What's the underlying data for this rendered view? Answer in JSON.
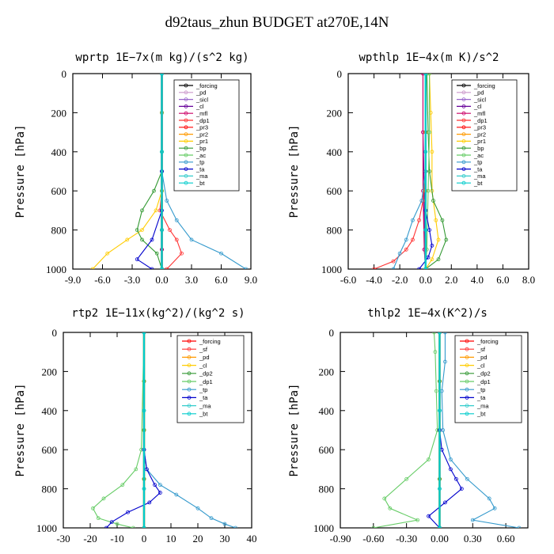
{
  "figure": {
    "title": "d92taus_zhun  BUDGET at270E,14N"
  },
  "chart_data": [
    {
      "type": "line",
      "title": "wprtp  1E−7x(m kg)/(s^2 kg)",
      "ylabel": "Pressure [hPa]",
      "xlim": [
        -9,
        9
      ],
      "ylim": [
        0,
        1000
      ],
      "y_inverted": true,
      "xticks": [
        "-9.0",
        "-6.0",
        "-3.0",
        "0.0",
        "3.0",
        "6.0",
        "9.0"
      ],
      "yticks": [
        "0",
        "200",
        "400",
        "600",
        "800",
        "1000"
      ],
      "legend_position": "top-right",
      "series": [
        {
          "name": "_forcing",
          "color": "#000000",
          "x": [
            0,
            0,
            0,
            0,
            0,
            0,
            0
          ],
          "y": [
            0,
            200,
            400,
            600,
            800,
            900,
            1000
          ]
        },
        {
          "name": "_pd",
          "color": "#cc99cc",
          "x": [
            0,
            0,
            0,
            0,
            0,
            0,
            0
          ],
          "y": [
            0,
            200,
            400,
            600,
            800,
            900,
            1000
          ]
        },
        {
          "name": "_sicl",
          "color": "#9966cc",
          "x": [
            0,
            0,
            0,
            0,
            0,
            0,
            0
          ],
          "y": [
            0,
            200,
            400,
            600,
            800,
            900,
            1000
          ]
        },
        {
          "name": "_cl",
          "color": "#660099",
          "x": [
            0,
            0,
            0,
            0,
            0,
            0,
            0
          ],
          "y": [
            0,
            200,
            400,
            600,
            800,
            900,
            1000
          ]
        },
        {
          "name": "_mfl",
          "color": "#cc0066",
          "x": [
            0,
            0,
            0,
            0,
            0,
            0,
            0
          ],
          "y": [
            0,
            200,
            400,
            600,
            800,
            900,
            1000
          ]
        },
        {
          "name": "_dp1",
          "color": "#ff3333",
          "x": [
            0,
            0,
            0,
            -0.2,
            0.8,
            1.5,
            2.0,
            0.5
          ],
          "y": [
            0,
            400,
            600,
            700,
            800,
            850,
            920,
            1000
          ]
        },
        {
          "name": "_pr3",
          "color": "#ff0000",
          "x": [
            0,
            0,
            0,
            0,
            0,
            0
          ],
          "y": [
            0,
            200,
            400,
            600,
            800,
            1000
          ]
        },
        {
          "name": "_pr2",
          "color": "#ff9900",
          "x": [
            0,
            0,
            0,
            0,
            0,
            0
          ],
          "y": [
            0,
            200,
            400,
            600,
            800,
            1000
          ]
        },
        {
          "name": "_pr1",
          "color": "#ffcc00",
          "x": [
            0,
            0,
            0,
            -0.6,
            -2.0,
            -3.5,
            -5.5,
            -7.0
          ],
          "y": [
            0,
            400,
            600,
            700,
            800,
            850,
            920,
            1000
          ]
        },
        {
          "name": "_bp",
          "color": "#339933",
          "x": [
            0,
            0,
            -0.8,
            -2.0,
            -2.5,
            -2.0,
            -0.5,
            0
          ],
          "y": [
            0,
            500,
            600,
            700,
            800,
            850,
            920,
            1000
          ]
        },
        {
          "name": "_ac",
          "color": "#66cc66",
          "x": [
            0,
            0,
            0,
            0,
            0
          ],
          "y": [
            0,
            200,
            400,
            600,
            1000
          ]
        },
        {
          "name": "_tp",
          "color": "#3399cc",
          "x": [
            0,
            0,
            0.5,
            1.5,
            3.0,
            6.0,
            8.5
          ],
          "y": [
            0,
            500,
            650,
            750,
            850,
            920,
            1000
          ]
        },
        {
          "name": "_ta",
          "color": "#0000cc",
          "x": [
            0,
            0,
            0,
            -1.0,
            -2.5,
            -1.0
          ],
          "y": [
            0,
            500,
            700,
            850,
            950,
            1000
          ]
        },
        {
          "name": "_ma",
          "color": "#33cccc",
          "x": [
            0,
            0,
            0,
            0
          ],
          "y": [
            0,
            400,
            800,
            1000
          ]
        },
        {
          "name": "_bt",
          "color": "#00cccc",
          "x": [
            0,
            0,
            0,
            0
          ],
          "y": [
            0,
            400,
            800,
            1000
          ]
        }
      ]
    },
    {
      "type": "line",
      "title": "wpthlp  1E−4x(m K)/s^2",
      "ylabel": "Pressure [hPa]",
      "xlim": [
        -6,
        8
      ],
      "ylim": [
        0,
        1000
      ],
      "y_inverted": true,
      "xticks": [
        "-6.0",
        "-4.0",
        "-2.0",
        "0.0",
        "2.0",
        "4.0",
        "6.0",
        "8.0"
      ],
      "yticks": [
        "0",
        "200",
        "400",
        "600",
        "800",
        "1000"
      ],
      "legend_position": "top-right",
      "series": [
        {
          "name": "_forcing",
          "color": "#000000",
          "x": [
            0,
            0,
            0,
            0,
            0
          ],
          "y": [
            0,
            300,
            600,
            900,
            1000
          ]
        },
        {
          "name": "_pd",
          "color": "#cc99cc",
          "x": [
            0,
            0,
            0,
            0,
            0
          ],
          "y": [
            0,
            300,
            600,
            900,
            1000
          ]
        },
        {
          "name": "_sicl",
          "color": "#9966cc",
          "x": [
            0,
            0,
            0,
            0,
            0
          ],
          "y": [
            0,
            300,
            600,
            900,
            1000
          ]
        },
        {
          "name": "_cl",
          "color": "#660099",
          "x": [
            -0.2,
            -0.2,
            -0.1,
            -0.1,
            0
          ],
          "y": [
            0,
            300,
            600,
            900,
            1000
          ]
        },
        {
          "name": "_mfl",
          "color": "#cc0066",
          "x": [
            -0.2,
            -0.2,
            -0.2,
            -0.1,
            0
          ],
          "y": [
            0,
            300,
            600,
            900,
            1000
          ]
        },
        {
          "name": "_dp1",
          "color": "#ff3333",
          "x": [
            0,
            0,
            -0.2,
            -0.5,
            -1.0,
            -1.5,
            -2.5,
            -4.0
          ],
          "y": [
            0,
            500,
            650,
            750,
            850,
            900,
            960,
            1000
          ]
        },
        {
          "name": "_pr3",
          "color": "#ff0000",
          "x": [
            0,
            0,
            0,
            0
          ],
          "y": [
            0,
            300,
            600,
            1000
          ]
        },
        {
          "name": "_pr2",
          "color": "#ff9900",
          "x": [
            0,
            0,
            0,
            0
          ],
          "y": [
            0,
            300,
            600,
            1000
          ]
        },
        {
          "name": "_pr1",
          "color": "#ffcc00",
          "x": [
            0.3,
            0.4,
            0.5,
            0.5,
            0.8,
            1.0,
            0.5,
            0
          ],
          "y": [
            0,
            200,
            400,
            600,
            750,
            850,
            950,
            1000
          ]
        },
        {
          "name": "_bp",
          "color": "#339933",
          "x": [
            0.1,
            0.2,
            0.3,
            0.6,
            1.3,
            1.6,
            1.0,
            0
          ],
          "y": [
            0,
            300,
            500,
            650,
            750,
            850,
            950,
            1000
          ]
        },
        {
          "name": "_ac",
          "color": "#66cc66",
          "x": [
            0.3,
            0.3,
            0.2,
            0.1,
            0
          ],
          "y": [
            0,
            300,
            600,
            900,
            1000
          ]
        },
        {
          "name": "_tp",
          "color": "#3399cc",
          "x": [
            0,
            0,
            -0.3,
            -1.0,
            -1.5,
            -2.0,
            -2.5
          ],
          "y": [
            0,
            500,
            650,
            750,
            850,
            920,
            1000
          ]
        },
        {
          "name": "_ta",
          "color": "#0000cc",
          "x": [
            0,
            0,
            0.3,
            0.5,
            0.2,
            -0.5
          ],
          "y": [
            0,
            700,
            800,
            880,
            940,
            1000
          ]
        },
        {
          "name": "_ma",
          "color": "#33cccc",
          "x": [
            0,
            0,
            0,
            0
          ],
          "y": [
            0,
            400,
            800,
            1000
          ]
        },
        {
          "name": "_bt",
          "color": "#00cccc",
          "x": [
            0,
            0,
            0,
            0
          ],
          "y": [
            0,
            400,
            800,
            1000
          ]
        }
      ]
    },
    {
      "type": "line",
      "title": "rtp2  1E−11x(kg^2)/(kg^2 s)",
      "ylabel": "Pressure [hPa]",
      "xlim": [
        -30,
        40
      ],
      "ylim": [
        0,
        1000
      ],
      "y_inverted": true,
      "xticks": [
        "-30",
        "-20",
        "-10",
        "0",
        "10",
        "20",
        "30",
        "40"
      ],
      "yticks": [
        "0",
        "200",
        "400",
        "600",
        "800",
        "1000"
      ],
      "legend_position": "top-right",
      "series": [
        {
          "name": "_forcing",
          "color": "#ff0000",
          "x": [
            0,
            0,
            0,
            0,
            0
          ],
          "y": [
            0,
            250,
            500,
            750,
            1000
          ]
        },
        {
          "name": "_sf",
          "color": "#ff3333",
          "x": [
            0,
            0,
            0,
            0,
            0
          ],
          "y": [
            0,
            250,
            500,
            750,
            1000
          ]
        },
        {
          "name": "_pd",
          "color": "#ff9900",
          "x": [
            0,
            0,
            0,
            0,
            0
          ],
          "y": [
            0,
            250,
            500,
            750,
            1000
          ]
        },
        {
          "name": "_cl",
          "color": "#ffcc00",
          "x": [
            0,
            0,
            0,
            0,
            0
          ],
          "y": [
            0,
            250,
            500,
            750,
            1000
          ]
        },
        {
          "name": "_dp2",
          "color": "#339933",
          "x": [
            0,
            0,
            0,
            0,
            0
          ],
          "y": [
            0,
            250,
            500,
            750,
            1000
          ]
        },
        {
          "name": "_dp1",
          "color": "#66cc66",
          "x": [
            0,
            -1,
            -3,
            -8,
            -15,
            -19,
            -17,
            -10,
            -4
          ],
          "y": [
            0,
            600,
            700,
            780,
            850,
            900,
            950,
            980,
            1000
          ]
        },
        {
          "name": "_tp",
          "color": "#3399cc",
          "x": [
            0,
            0,
            1,
            6,
            12,
            20,
            25,
            30,
            34
          ],
          "y": [
            0,
            600,
            700,
            780,
            830,
            900,
            950,
            980,
            1000
          ]
        },
        {
          "name": "_ta",
          "color": "#0000cc",
          "x": [
            0,
            0,
            1,
            4,
            6,
            2,
            -6,
            -12,
            -14
          ],
          "y": [
            0,
            600,
            700,
            780,
            820,
            870,
            920,
            970,
            1000
          ]
        },
        {
          "name": "_ma",
          "color": "#33cccc",
          "x": [
            0,
            0,
            0,
            0
          ],
          "y": [
            0,
            400,
            800,
            1000
          ]
        },
        {
          "name": "_bt",
          "color": "#00cccc",
          "x": [
            0,
            0,
            0,
            0
          ],
          "y": [
            0,
            400,
            800,
            1000
          ]
        }
      ]
    },
    {
      "type": "line",
      "title": "thlp2  1E−4x(K^2)/s",
      "ylabel": "Pressure [hPa]",
      "xlim": [
        -0.9,
        0.8
      ],
      "ylim": [
        0,
        1000
      ],
      "y_inverted": true,
      "xticks": [
        "-0.90",
        "-0.60",
        "-0.30",
        "0.00",
        "0.30",
        "0.60"
      ],
      "yticks": [
        "0",
        "200",
        "400",
        "600",
        "800",
        "1000"
      ],
      "legend_position": "top-right",
      "series": [
        {
          "name": "_forcing",
          "color": "#ff0000",
          "x": [
            0,
            0,
            0,
            0,
            0
          ],
          "y": [
            0,
            250,
            500,
            750,
            1000
          ]
        },
        {
          "name": "_sf",
          "color": "#ff3333",
          "x": [
            0,
            0,
            0,
            0,
            0
          ],
          "y": [
            0,
            250,
            500,
            750,
            1000
          ]
        },
        {
          "name": "_pd",
          "color": "#ff9900",
          "x": [
            0,
            0,
            0,
            0,
            0
          ],
          "y": [
            0,
            250,
            500,
            750,
            1000
          ]
        },
        {
          "name": "_cl",
          "color": "#ffcc00",
          "x": [
            0,
            0,
            0,
            0,
            0
          ],
          "y": [
            0,
            250,
            500,
            750,
            1000
          ]
        },
        {
          "name": "_dp2",
          "color": "#339933",
          "x": [
            0,
            0,
            0,
            0,
            0
          ],
          "y": [
            0,
            250,
            500,
            750,
            1000
          ]
        },
        {
          "name": "_dp1",
          "color": "#66cc66",
          "x": [
            -0.05,
            -0.04,
            -0.03,
            -0.02,
            -0.1,
            -0.3,
            -0.5,
            -0.45,
            -0.2,
            -0.6
          ],
          "y": [
            0,
            100,
            300,
            500,
            650,
            750,
            850,
            900,
            960,
            1000
          ]
        },
        {
          "name": "_tp",
          "color": "#3399cc",
          "x": [
            0.05,
            0.05,
            0.02,
            0.03,
            0.1,
            0.25,
            0.45,
            0.5,
            0.3,
            0.72
          ],
          "y": [
            0,
            150,
            300,
            500,
            650,
            750,
            850,
            900,
            960,
            1000
          ]
        },
        {
          "name": "_ta",
          "color": "#0000cc",
          "x": [
            0,
            0,
            0.02,
            0.1,
            0.15,
            0.2,
            0.05,
            -0.1,
            0.0
          ],
          "y": [
            0,
            500,
            600,
            700,
            750,
            800,
            870,
            940,
            1000
          ]
        },
        {
          "name": "_ma",
          "color": "#33cccc",
          "x": [
            0,
            0,
            0,
            0
          ],
          "y": [
            0,
            400,
            800,
            1000
          ]
        },
        {
          "name": "_bt",
          "color": "#00cccc",
          "x": [
            0,
            0,
            0,
            0
          ],
          "y": [
            0,
            400,
            800,
            1000
          ]
        }
      ]
    }
  ]
}
